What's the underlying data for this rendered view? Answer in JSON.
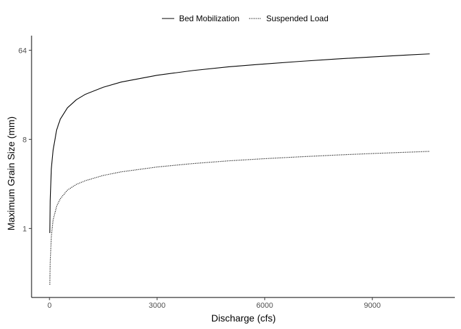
{
  "chart_data": {
    "type": "line",
    "title": "",
    "xlabel": "Discharge (cfs)",
    "ylabel": "Maximum Grain Size (mm)",
    "x_scale": "linear",
    "y_scale": "log2",
    "xlim": [
      -500,
      11300
    ],
    "ylim": [
      0.2,
      90
    ],
    "x_ticks": [
      0,
      3000,
      6000,
      9000
    ],
    "x_tick_labels": [
      "0",
      "3000",
      "6000",
      "9000"
    ],
    "y_ticks": [
      1,
      8,
      64
    ],
    "y_tick_labels": [
      "1",
      "8",
      "64"
    ],
    "grid": false,
    "legend_position": "top",
    "series": [
      {
        "name": "Bed Mobilization",
        "line_style": "solid",
        "color": "#000000",
        "x": [
          10,
          20,
          50,
          100,
          200,
          300,
          500,
          750,
          1000,
          1500,
          2000,
          3000,
          4000,
          5000,
          6000,
          7000,
          8000,
          9000,
          10000,
          10600
        ],
        "y": [
          0.9,
          1.9,
          4.0,
          6.2,
          10.0,
          12.8,
          16.7,
          20.2,
          22.9,
          27.0,
          30.5,
          35.7,
          39.9,
          43.5,
          46.5,
          49.4,
          52.2,
          54.8,
          57.3,
          58.8
        ]
      },
      {
        "name": "Suspended Load",
        "line_style": "dotted",
        "color": "#000000",
        "x": [
          10,
          20,
          50,
          100,
          200,
          300,
          500,
          750,
          1000,
          1500,
          2000,
          3000,
          4000,
          5000,
          6000,
          7000,
          8000,
          9000,
          10000,
          10600
        ],
        "y": [
          0.27,
          0.45,
          0.82,
          1.22,
          1.68,
          2.0,
          2.45,
          2.8,
          3.05,
          3.45,
          3.75,
          4.2,
          4.55,
          4.85,
          5.1,
          5.33,
          5.55,
          5.75,
          5.93,
          6.05
        ]
      }
    ]
  }
}
